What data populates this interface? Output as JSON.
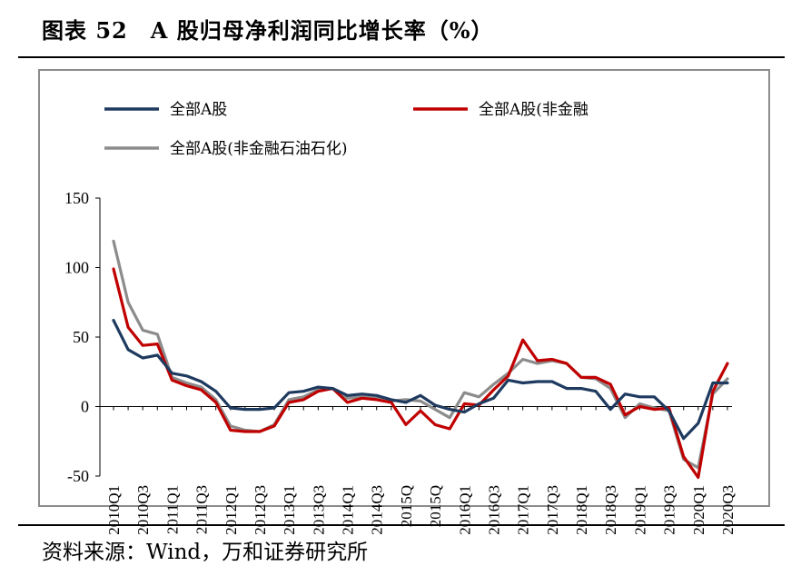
{
  "title": "图表 52　A 股归母净利润同比增长率（%）",
  "source": "资料来源：Wind，万和证券研究所",
  "chart_data": {
    "type": "line",
    "ylim": [
      -50,
      150
    ],
    "yticks": [
      "150",
      "100",
      "50",
      "0",
      "-50"
    ],
    "ytick_values": [
      150,
      100,
      50,
      0,
      -50
    ],
    "x": [
      "2010Q1",
      "2010Q2",
      "2010Q3",
      "2010Q4",
      "2011Q1",
      "2011Q2",
      "2011Q3",
      "2011Q4",
      "2012Q1",
      "2012Q2",
      "2012Q3",
      "2012Q4",
      "2013Q1",
      "2013Q2",
      "2013Q3",
      "2013Q4",
      "2014Q1",
      "2014Q2",
      "2014Q3",
      "2014Q4",
      "2015Q1",
      "2015Q2",
      "2015Q3",
      "2015Q4",
      "2016Q1",
      "2016Q2",
      "2016Q3",
      "2016Q4",
      "2017Q1",
      "2017Q2",
      "2017Q3",
      "2017Q4",
      "2018Q1",
      "2018Q2",
      "2018Q3",
      "2018Q4",
      "2019Q1",
      "2019Q2",
      "2019Q3",
      "2019Q4",
      "2020Q1",
      "2020Q2",
      "2020Q3"
    ],
    "xtick_labels": [
      "2010Q1",
      "2010Q3",
      "2011Q1",
      "2011Q3",
      "2012Q1",
      "2012Q3",
      "2013Q1",
      "2013Q3",
      "2014Q1",
      "2014Q3",
      "2015Q1",
      "2015Q3",
      "2016Q1",
      "2016Q3",
      "2017Q1",
      "2017Q3",
      "2018Q1",
      "2018Q3",
      "2019Q1",
      "2019Q3",
      "2020Q1",
      "2020Q3"
    ],
    "xtick_display": [
      "2010Q1",
      "2010Q3",
      "2011Q1",
      "2011Q3",
      "2012Q1",
      "2012Q3",
      "2013Q1",
      "2013Q3",
      "2014Q1",
      "2014Q3",
      "2015Q",
      "2015Q",
      "2016Q1",
      "2016Q3",
      "2017Q1",
      "2017Q3",
      "2018Q1",
      "2018Q3",
      "2019Q1",
      "2019Q3",
      "2020Q1",
      "2020Q3"
    ],
    "legend_position": "top",
    "grid": false,
    "series": [
      {
        "name": "全部A股",
        "color": "#1f3a5f",
        "values": [
          62,
          41,
          35,
          37,
          24,
          22,
          18,
          11,
          -1,
          -2,
          -2,
          -1,
          10,
          11,
          14,
          13,
          8,
          9,
          8,
          5,
          3,
          8,
          1,
          -2,
          -4,
          2,
          6,
          19,
          17,
          18,
          18,
          13,
          13,
          11,
          -2,
          9,
          7,
          7,
          -3,
          -23,
          -12,
          17,
          17
        ]
      },
      {
        "name": "全部A股(非金融",
        "color": "#c00000",
        "values": [
          99,
          57,
          44,
          45,
          19,
          15,
          12,
          3,
          -17,
          -18,
          -18,
          -14,
          3,
          5,
          11,
          13,
          3,
          6,
          5,
          3,
          -13,
          -3,
          -13,
          -16,
          2,
          1,
          12,
          22,
          48,
          33,
          34,
          31,
          21,
          21,
          16,
          -6,
          0,
          -2,
          -1,
          -36,
          -51,
          11,
          31
        ]
      },
      {
        "name": "全部A股(非金融石油石化)",
        "color": "#8c8c8c",
        "values": [
          119,
          75,
          55,
          52,
          21,
          17,
          14,
          5,
          -14,
          -17,
          -18,
          -13,
          5,
          7,
          12,
          13,
          6,
          7,
          6,
          4,
          5,
          4,
          -2,
          -8,
          10,
          7,
          16,
          24,
          34,
          31,
          33,
          31,
          21,
          20,
          13,
          -8,
          2,
          -1,
          -3,
          -38,
          -44,
          9,
          20
        ]
      }
    ]
  }
}
